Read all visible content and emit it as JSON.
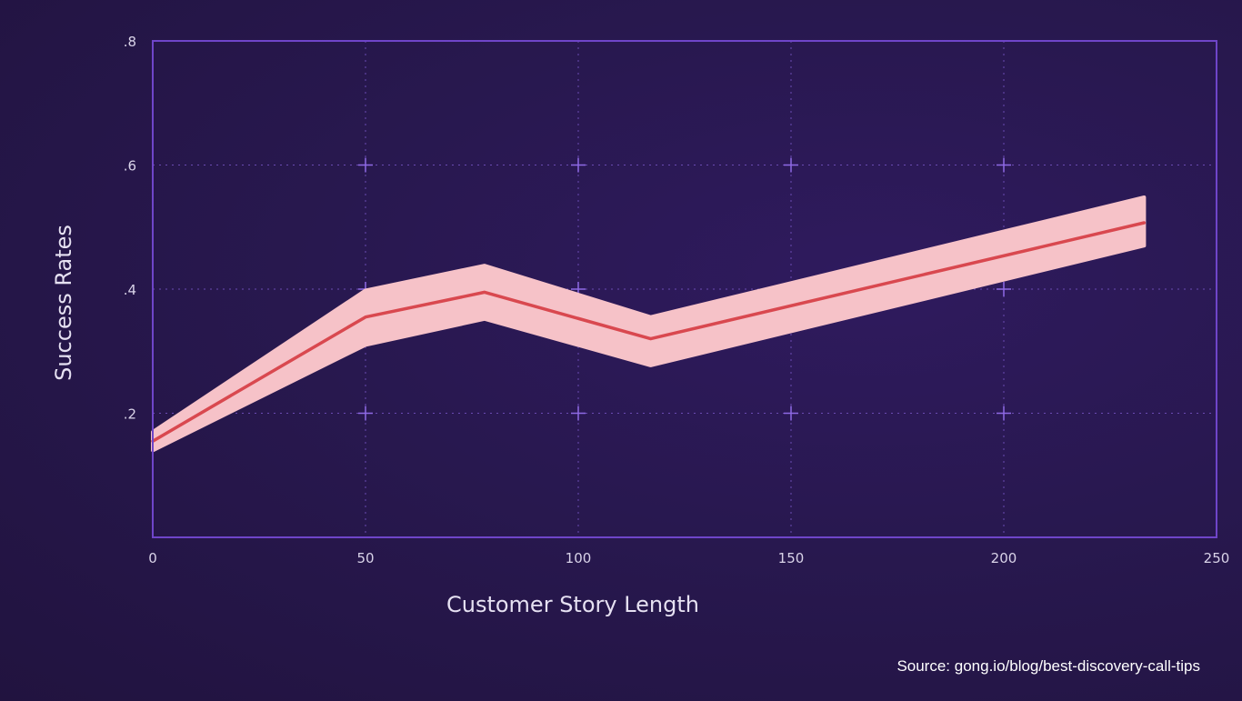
{
  "chart_data": {
    "type": "line",
    "title": "",
    "xlabel": "Customer Story Length",
    "ylabel": "Success Rates",
    "xlim": [
      0,
      250
    ],
    "ylim": [
      0,
      0.8
    ],
    "x_ticks": [
      0,
      50,
      100,
      150,
      200,
      250
    ],
    "x_tick_labels": [
      "0",
      "50",
      "100",
      "150",
      "200",
      "250"
    ],
    "y_ticks": [
      0.2,
      0.4,
      0.6,
      0.8
    ],
    "y_tick_labels": [
      ".2",
      ".4",
      ".6",
      ".8"
    ],
    "grid": true,
    "series": [
      {
        "x": [
          0,
          50,
          78,
          117,
          233
        ],
        "y": [
          0.155,
          0.355,
          0.395,
          0.32,
          0.507
        ],
        "lower": [
          0.14,
          0.31,
          0.352,
          0.277,
          0.47
        ],
        "upper": [
          0.17,
          0.398,
          0.438,
          0.355,
          0.548
        ]
      }
    ],
    "colors": {
      "line": "#d9484f",
      "band": "#f6c2c8",
      "frame": "#6f45c9",
      "grid": "#6a4bb2",
      "cross": "#8f6ae6"
    }
  },
  "source": "Source: gong.io/blog/best-discovery-call-tips"
}
